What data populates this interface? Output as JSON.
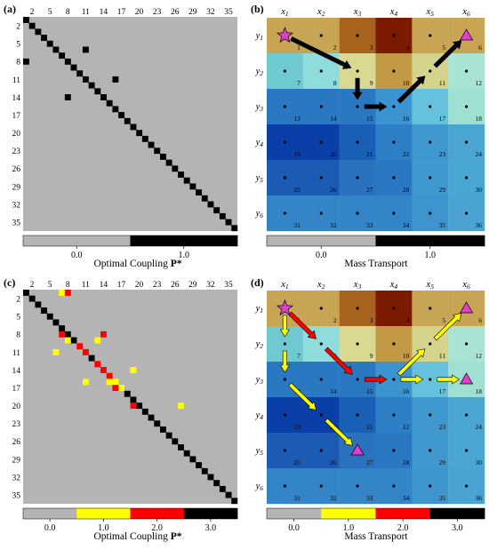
{
  "panels": {
    "a": {
      "label": "(a)",
      "caption": "Optimal Coupling",
      "caption_symbol": "P*",
      "colorbar_ticks": [
        "0.0",
        "1.0"
      ]
    },
    "b": {
      "label": "(b)",
      "caption": "Mass Transport",
      "colorbar_ticks": [
        "0.0",
        "1.0"
      ]
    },
    "c": {
      "label": "(c)",
      "caption": "Optimal Coupling",
      "caption_symbol": "P*",
      "colorbar_ticks": [
        "0.0",
        "1.0",
        "2.0",
        "3.0"
      ]
    },
    "d": {
      "label": "(d)",
      "caption": "Mass Transport",
      "colorbar_ticks": [
        "0.0",
        "1.0",
        "2.0",
        "3.0"
      ]
    }
  },
  "matrix_tick_labels": [
    "2",
    "5",
    "8",
    "11",
    "14",
    "17",
    "20",
    "23",
    "26",
    "29",
    "32",
    "35"
  ],
  "matrix_size": 36,
  "colors": {
    "level0": "#b4b4b4",
    "level1": "#ffff00",
    "level2": "#ff0000",
    "level3": "#000000"
  },
  "coupling_a_offdiag": [
    [
      8,
      1
    ],
    [
      14,
      8
    ],
    [
      6,
      11
    ],
    [
      11,
      16
    ]
  ],
  "coupling_c": [
    {
      "r": 1,
      "c": 7,
      "v": 1
    },
    {
      "r": 1,
      "c": 8,
      "v": 2
    },
    {
      "r": 8,
      "c": 7,
      "v": 2
    },
    {
      "r": 9,
      "c": 8,
      "v": 1
    },
    {
      "r": 9,
      "c": 13,
      "v": 1
    },
    {
      "r": 11,
      "c": 6,
      "v": 1
    },
    {
      "r": 10,
      "c": 10,
      "v": 2
    },
    {
      "r": 11,
      "c": 11,
      "v": 2
    },
    {
      "r": 8,
      "c": 14,
      "v": 2
    },
    {
      "r": 13,
      "c": 13,
      "v": 2
    },
    {
      "r": 14,
      "c": 14,
      "v": 2
    },
    {
      "r": 16,
      "c": 11,
      "v": 1
    },
    {
      "r": 15,
      "c": 15,
      "v": 2
    },
    {
      "r": 16,
      "c": 15,
      "v": 1
    },
    {
      "r": 16,
      "c": 16,
      "v": 1
    },
    {
      "r": 17,
      "c": 16,
      "v": 2
    },
    {
      "r": 17,
      "c": 17,
      "v": 1
    },
    {
      "r": 14,
      "c": 19,
      "v": 1
    },
    {
      "r": 20,
      "c": 19,
      "v": 2
    },
    {
      "r": 20,
      "c": 27,
      "v": 1
    }
  ],
  "grid": {
    "x_labels": [
      "x1",
      "x2",
      "x3",
      "x4",
      "x5",
      "x6"
    ],
    "y_labels": [
      "y1",
      "y2",
      "y3",
      "y4",
      "y5",
      "y6"
    ],
    "cell_numbers": [
      "1",
      "2",
      "3",
      "4",
      "5",
      "6",
      "7",
      "8",
      "9",
      "10",
      "11",
      "12",
      "13",
      "14",
      "15",
      "16",
      "17",
      "18",
      "19",
      "20",
      "21",
      "22",
      "23",
      "24",
      "25",
      "26",
      "27",
      "28",
      "29",
      "30",
      "31",
      "32",
      "33",
      "34",
      "35",
      "36"
    ],
    "cell_colors": [
      [
        "#c8a555",
        "#c8a555",
        "#a8641e",
        "#7a1a00",
        "#c8a555",
        "#c8a555"
      ],
      [
        "#6ec9d1",
        "#8fdcdc",
        "#d9d991",
        "#c29a45",
        "#d5d48c",
        "#a9e3d3"
      ],
      [
        "#2a78c2",
        "#2a78c2",
        "#2a78c2",
        "#3b93cf",
        "#66c1dc",
        "#9fe0d3"
      ],
      [
        "#0b3fa8",
        "#0b3fa8",
        "#1a5fb6",
        "#2e80c6",
        "#3e98cd",
        "#4ba5d2"
      ],
      [
        "#1c5bb3",
        "#1c5bb3",
        "#2a72be",
        "#2b78c2",
        "#3f99cf",
        "#4aa6d3"
      ],
      [
        "#3484c8",
        "#3484c8",
        "#3484c8",
        "#3484c8",
        "#3e95cd",
        "#4aa3d2"
      ]
    ]
  },
  "arrows_b": [
    {
      "from": 1,
      "to": 9,
      "color": "#000000"
    },
    {
      "from": 9,
      "to": 15,
      "color": "#000000"
    },
    {
      "from": 15,
      "to": 16,
      "color": "#000000"
    },
    {
      "from": 16,
      "to": 11,
      "color": "#000000"
    },
    {
      "from": 11,
      "to": 6,
      "color": "#000000"
    }
  ],
  "arrows_d": [
    {
      "from": 1,
      "to": 7,
      "color": "#ffff00"
    },
    {
      "from": 7,
      "to": 13,
      "color": "#ffff00"
    },
    {
      "from": 13,
      "to": 20,
      "color": "#ffff00"
    },
    {
      "from": 20,
      "to": 27,
      "color": "#ffff00"
    },
    {
      "from": 1,
      "to": 8,
      "color": "#ff0000"
    },
    {
      "from": 8,
      "to": 15,
      "color": "#ff0000"
    },
    {
      "from": 15,
      "to": 16,
      "color": "#ff0000"
    },
    {
      "from": 16,
      "to": 17,
      "color": "#ffff00"
    },
    {
      "from": 17,
      "to": 18,
      "color": "#ffff00"
    },
    {
      "from": 16,
      "to": 11,
      "color": "#ffff00"
    },
    {
      "from": 11,
      "to": 6,
      "color": "#ffff00"
    }
  ],
  "markers_b": {
    "star": 1,
    "triangles": [
      6
    ]
  },
  "markers_d": {
    "star": 1,
    "triangles": [
      6,
      18,
      27
    ]
  },
  "marker_color": "#e040d0"
}
